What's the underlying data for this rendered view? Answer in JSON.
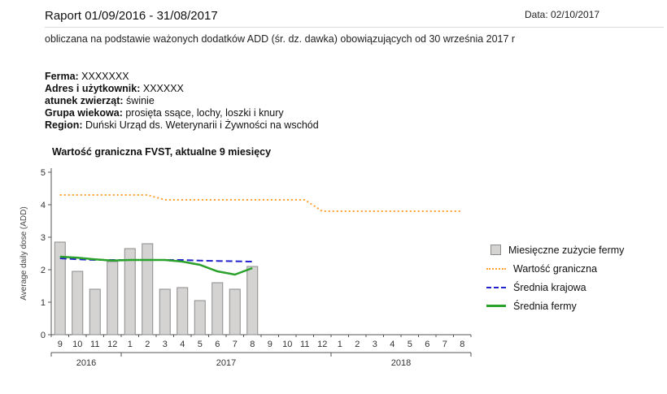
{
  "header": {
    "title": "Raport 01/09/2016 - 31/08/2017",
    "date": "Data: 02/10/2017",
    "subtitle": "obliczana na podstawie ważonych dodatków ADD (śr. dz. dawka) obowiązujących od 30 września 2017 r"
  },
  "info": {
    "rows": [
      {
        "label": "Ferma:",
        "value": "XXXXXXX"
      },
      {
        "label": "Adres i użytkownik:",
        "value": "XXXXXX"
      },
      {
        "label": "atunek zwierząt:",
        "value": "świnie"
      },
      {
        "label": "Grupa wiekowa:",
        "value": "prosięta ssące, lochy, loszki i knury"
      },
      {
        "label": "Region:",
        "value": "Duński Urząd ds. Weterynarii i Żywności na wschód"
      }
    ]
  },
  "chart_data": {
    "type": "bar",
    "title": "Wartość graniczna FVST, aktualne 9 miesięcy",
    "ylabel": "Average daily dose (ADD)",
    "ylim": [
      0,
      5
    ],
    "yticks": [
      0,
      1,
      2,
      3,
      4,
      5
    ],
    "categories": [
      "9",
      "10",
      "11",
      "12",
      "1",
      "2",
      "3",
      "4",
      "5",
      "6",
      "7",
      "8",
      "9",
      "10",
      "11",
      "12",
      "1",
      "2",
      "3",
      "4",
      "5",
      "6",
      "7",
      "8"
    ],
    "year_groups": [
      {
        "label": "2016",
        "start": 0,
        "count": 4
      },
      {
        "label": "2017",
        "start": 4,
        "count": 12
      },
      {
        "label": "2018",
        "start": 16,
        "count": 8
      }
    ],
    "legend_position": "right",
    "series": [
      {
        "name": "Miesięczne zużycie fermy",
        "type": "bar",
        "color": "#d5d2d2",
        "border_color": "#8c8c8c",
        "values": [
          2.85,
          1.95,
          1.4,
          2.25,
          2.65,
          2.8,
          1.4,
          1.45,
          1.05,
          1.6,
          1.4,
          2.1,
          null,
          null,
          null,
          null,
          null,
          null,
          null,
          null,
          null,
          null,
          null,
          null
        ]
      },
      {
        "name": "Wartość graniczna",
        "type": "line",
        "line_style": "dotted",
        "color": "#FFA033",
        "values": [
          4.3,
          4.3,
          4.3,
          4.3,
          4.3,
          4.3,
          4.15,
          4.15,
          4.15,
          4.15,
          4.15,
          4.15,
          4.15,
          4.15,
          4.15,
          3.8,
          3.8,
          3.8,
          3.8,
          3.8,
          3.8,
          3.8,
          3.8,
          3.8
        ]
      },
      {
        "name": "Średnia krajowa",
        "type": "line",
        "line_style": "dashed",
        "color": "#2222cc",
        "values": [
          2.35,
          2.32,
          2.3,
          2.3,
          2.3,
          2.3,
          2.3,
          2.3,
          2.28,
          2.27,
          2.26,
          2.25,
          null,
          null,
          null,
          null,
          null,
          null,
          null,
          null,
          null,
          null,
          null,
          null
        ]
      },
      {
        "name": "Średnia fermy",
        "type": "line",
        "line_style": "solid",
        "color": "#2aa12a",
        "values": [
          2.4,
          2.37,
          2.32,
          2.28,
          2.3,
          2.3,
          2.3,
          2.25,
          2.15,
          1.95,
          1.85,
          2.05,
          null,
          null,
          null,
          null,
          null,
          null,
          null,
          null,
          null,
          null,
          null,
          null
        ]
      }
    ]
  }
}
